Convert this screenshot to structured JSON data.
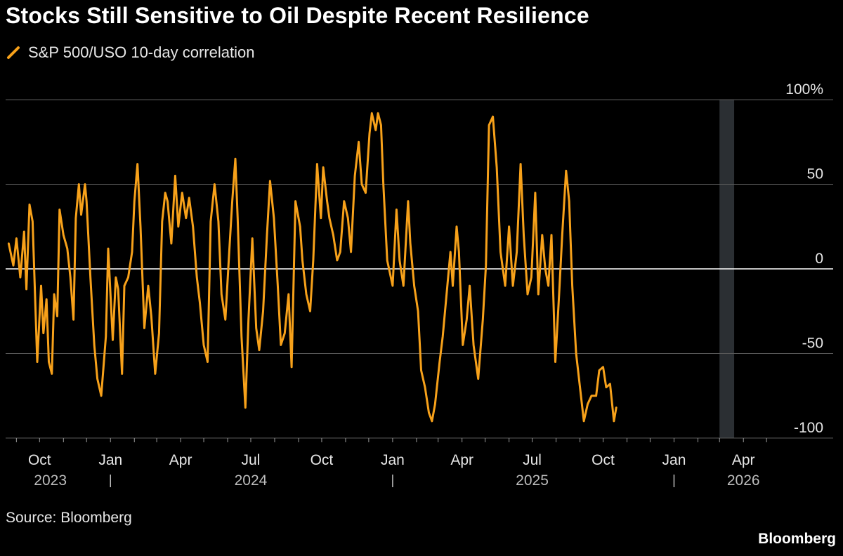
{
  "chart_data": {
    "type": "line",
    "title": "Stocks Still Sensitive to Oil Despite Recent Resilience",
    "series": [
      {
        "name": "S&P 500/USO 10-day correlation",
        "color": "#f7a11a",
        "points": [
          [
            "2023-08-22",
            15
          ],
          [
            "2023-08-28",
            2
          ],
          [
            "2023-09-01",
            18
          ],
          [
            "2023-09-06",
            -5
          ],
          [
            "2023-09-11",
            22
          ],
          [
            "2023-09-14",
            -12
          ],
          [
            "2023-09-18",
            38
          ],
          [
            "2023-09-22",
            28
          ],
          [
            "2023-09-28",
            -55
          ],
          [
            "2023-10-03",
            -10
          ],
          [
            "2023-10-06",
            -38
          ],
          [
            "2023-10-10",
            -18
          ],
          [
            "2023-10-13",
            -55
          ],
          [
            "2023-10-17",
            -62
          ],
          [
            "2023-10-20",
            -15
          ],
          [
            "2023-10-24",
            -28
          ],
          [
            "2023-10-27",
            35
          ],
          [
            "2023-11-01",
            20
          ],
          [
            "2023-11-06",
            12
          ],
          [
            "2023-11-10",
            -5
          ],
          [
            "2023-11-14",
            -30
          ],
          [
            "2023-11-17",
            30
          ],
          [
            "2023-11-21",
            50
          ],
          [
            "2023-11-24",
            32
          ],
          [
            "2023-11-29",
            50
          ],
          [
            "2023-12-01",
            40
          ],
          [
            "2023-12-06",
            -5
          ],
          [
            "2023-12-11",
            -45
          ],
          [
            "2023-12-15",
            -65
          ],
          [
            "2023-12-20",
            -75
          ],
          [
            "2023-12-26",
            -40
          ],
          [
            "2023-12-29",
            12
          ],
          [
            "2024-01-04",
            -42
          ],
          [
            "2024-01-08",
            -5
          ],
          [
            "2024-01-11",
            -12
          ],
          [
            "2024-01-16",
            -62
          ],
          [
            "2024-01-19",
            -10
          ],
          [
            "2024-01-24",
            -5
          ],
          [
            "2024-01-29",
            10
          ],
          [
            "2024-02-01",
            40
          ],
          [
            "2024-02-05",
            62
          ],
          [
            "2024-02-09",
            25
          ],
          [
            "2024-02-14",
            -35
          ],
          [
            "2024-02-19",
            -10
          ],
          [
            "2024-02-23",
            -28
          ],
          [
            "2024-02-28",
            -62
          ],
          [
            "2024-03-04",
            -38
          ],
          [
            "2024-03-08",
            28
          ],
          [
            "2024-03-12",
            45
          ],
          [
            "2024-03-15",
            40
          ],
          [
            "2024-03-20",
            15
          ],
          [
            "2024-03-25",
            55
          ],
          [
            "2024-03-29",
            25
          ],
          [
            "2024-04-03",
            45
          ],
          [
            "2024-04-08",
            30
          ],
          [
            "2024-04-12",
            42
          ],
          [
            "2024-04-17",
            25
          ],
          [
            "2024-04-22",
            -5
          ],
          [
            "2024-04-26",
            -20
          ],
          [
            "2024-05-01",
            -45
          ],
          [
            "2024-05-06",
            -55
          ],
          [
            "2024-05-10",
            28
          ],
          [
            "2024-05-15",
            50
          ],
          [
            "2024-05-20",
            28
          ],
          [
            "2024-05-24",
            -15
          ],
          [
            "2024-05-29",
            -30
          ],
          [
            "2024-06-03",
            10
          ],
          [
            "2024-06-07",
            40
          ],
          [
            "2024-06-11",
            65
          ],
          [
            "2024-06-14",
            30
          ],
          [
            "2024-06-19",
            -40
          ],
          [
            "2024-06-24",
            -82
          ],
          [
            "2024-06-28",
            -30
          ],
          [
            "2024-07-03",
            18
          ],
          [
            "2024-07-08",
            -35
          ],
          [
            "2024-07-12",
            -48
          ],
          [
            "2024-07-17",
            -25
          ],
          [
            "2024-07-22",
            20
          ],
          [
            "2024-07-26",
            52
          ],
          [
            "2024-07-31",
            30
          ],
          [
            "2024-08-05",
            -10
          ],
          [
            "2024-08-09",
            -45
          ],
          [
            "2024-08-14",
            -38
          ],
          [
            "2024-08-19",
            -15
          ],
          [
            "2024-08-23",
            -58
          ],
          [
            "2024-08-28",
            40
          ],
          [
            "2024-09-03",
            25
          ],
          [
            "2024-09-06",
            5
          ],
          [
            "2024-09-11",
            -15
          ],
          [
            "2024-09-16",
            -25
          ],
          [
            "2024-09-20",
            5
          ],
          [
            "2024-09-25",
            62
          ],
          [
            "2024-09-30",
            30
          ],
          [
            "2024-10-03",
            60
          ],
          [
            "2024-10-08",
            40
          ],
          [
            "2024-10-11",
            30
          ],
          [
            "2024-10-16",
            20
          ],
          [
            "2024-10-21",
            5
          ],
          [
            "2024-10-25",
            10
          ],
          [
            "2024-10-30",
            40
          ],
          [
            "2024-11-04",
            30
          ],
          [
            "2024-11-08",
            10
          ],
          [
            "2024-11-13",
            55
          ],
          [
            "2024-11-18",
            75
          ],
          [
            "2024-11-22",
            50
          ],
          [
            "2024-11-27",
            45
          ],
          [
            "2024-12-02",
            80
          ],
          [
            "2024-12-05",
            92
          ],
          [
            "2024-12-10",
            82
          ],
          [
            "2024-12-13",
            92
          ],
          [
            "2024-12-17",
            85
          ],
          [
            "2024-12-20",
            50
          ],
          [
            "2024-12-25",
            5
          ],
          [
            "2025-01-01",
            -10
          ],
          [
            "2025-01-06",
            35
          ],
          [
            "2025-01-10",
            5
          ],
          [
            "2025-01-15",
            -10
          ],
          [
            "2025-01-21",
            40
          ],
          [
            "2025-01-24",
            15
          ],
          [
            "2025-01-29",
            -10
          ],
          [
            "2025-02-03",
            -25
          ],
          [
            "2025-02-07",
            -60
          ],
          [
            "2025-02-12",
            -70
          ],
          [
            "2025-02-17",
            -85
          ],
          [
            "2025-02-21",
            -90
          ],
          [
            "2025-02-25",
            -80
          ],
          [
            "2025-03-03",
            -55
          ],
          [
            "2025-03-07",
            -40
          ],
          [
            "2025-03-12",
            -15
          ],
          [
            "2025-03-17",
            10
          ],
          [
            "2025-03-20",
            -10
          ],
          [
            "2025-03-25",
            25
          ],
          [
            "2025-03-28",
            10
          ],
          [
            "2025-04-02",
            -45
          ],
          [
            "2025-04-07",
            -30
          ],
          [
            "2025-04-11",
            -10
          ],
          [
            "2025-04-16",
            -45
          ],
          [
            "2025-04-22",
            -65
          ],
          [
            "2025-04-28",
            -30
          ],
          [
            "2025-05-02",
            2
          ],
          [
            "2025-05-06",
            85
          ],
          [
            "2025-05-11",
            90
          ],
          [
            "2025-05-16",
            60
          ],
          [
            "2025-05-21",
            10
          ],
          [
            "2025-05-27",
            -10
          ],
          [
            "2025-06-01",
            25
          ],
          [
            "2025-06-06",
            -10
          ],
          [
            "2025-06-11",
            10
          ],
          [
            "2025-06-16",
            62
          ],
          [
            "2025-06-20",
            20
          ],
          [
            "2025-06-25",
            -15
          ],
          [
            "2025-06-30",
            -5
          ],
          [
            "2025-07-05",
            45
          ],
          [
            "2025-07-09",
            -15
          ],
          [
            "2025-07-14",
            20
          ],
          [
            "2025-07-18",
            0
          ],
          [
            "2025-07-22",
            -10
          ],
          [
            "2025-07-26",
            20
          ],
          [
            "2025-07-31",
            -55
          ],
          [
            "2025-08-05",
            -15
          ],
          [
            "2025-08-09",
            20
          ],
          [
            "2025-08-14",
            58
          ],
          [
            "2025-08-18",
            40
          ],
          [
            "2025-08-22",
            -10
          ],
          [
            "2025-08-27",
            -50
          ],
          [
            "2025-09-01",
            -70
          ],
          [
            "2025-09-06",
            -90
          ],
          [
            "2025-09-11",
            -80
          ],
          [
            "2025-09-16",
            -75
          ],
          [
            "2025-09-22",
            -75
          ],
          [
            "2025-09-26",
            -60
          ],
          [
            "2025-10-01",
            -58
          ],
          [
            "2025-10-05",
            -70
          ],
          [
            "2025-10-10",
            -68
          ],
          [
            "2025-10-15",
            -90
          ],
          [
            "2025-10-18",
            -82
          ]
        ]
      }
    ],
    "y_ticks": [
      {
        "value": 100,
        "label": "100%"
      },
      {
        "value": 50,
        "label": "50"
      },
      {
        "value": 0,
        "label": "0"
      },
      {
        "value": -50,
        "label": "-50"
      },
      {
        "value": -100,
        "label": "-100"
      }
    ],
    "ylim": [
      -100,
      100
    ],
    "xlim": [
      "2023-08-18",
      "2026-05-20"
    ],
    "x_ticks": [
      {
        "date": "2023-10-01",
        "label": "Oct"
      },
      {
        "date": "2024-01-01",
        "label": "Jan"
      },
      {
        "date": "2024-04-01",
        "label": "Apr"
      },
      {
        "date": "2024-07-01",
        "label": "Jul"
      },
      {
        "date": "2024-10-01",
        "label": "Oct"
      },
      {
        "date": "2025-01-01",
        "label": "Jan"
      },
      {
        "date": "2025-04-01",
        "label": "Apr"
      },
      {
        "date": "2025-07-01",
        "label": "Jul"
      },
      {
        "date": "2025-10-01",
        "label": "Oct"
      },
      {
        "date": "2026-01-01",
        "label": "Jan"
      },
      {
        "date": "2026-04-01",
        "label": "Apr"
      }
    ],
    "year_labels": [
      {
        "date": "2023-10-15",
        "label": "2023"
      },
      {
        "date": "2024-07-01",
        "label": "2024"
      },
      {
        "date": "2025-07-01",
        "label": "2025"
      },
      {
        "date": "2026-04-01",
        "label": "2026"
      }
    ],
    "year_dividers": [
      "2024-01-01",
      "2025-01-01",
      "2026-01-01"
    ],
    "grid": true,
    "legend_position": "top-left",
    "shaded_region": {
      "from": "2026-03-01",
      "to": "2026-03-20"
    }
  },
  "legend": {
    "label": "S&P 500/USO 10-day correlation"
  },
  "footer": {
    "source": "Source: Bloomberg",
    "brand": "Bloomberg"
  },
  "colors": {
    "line": "#f7a11a",
    "grid": "#5a5a5a",
    "zero": "#ffffff",
    "shade": "#2b2f33",
    "background": "#000000"
  }
}
